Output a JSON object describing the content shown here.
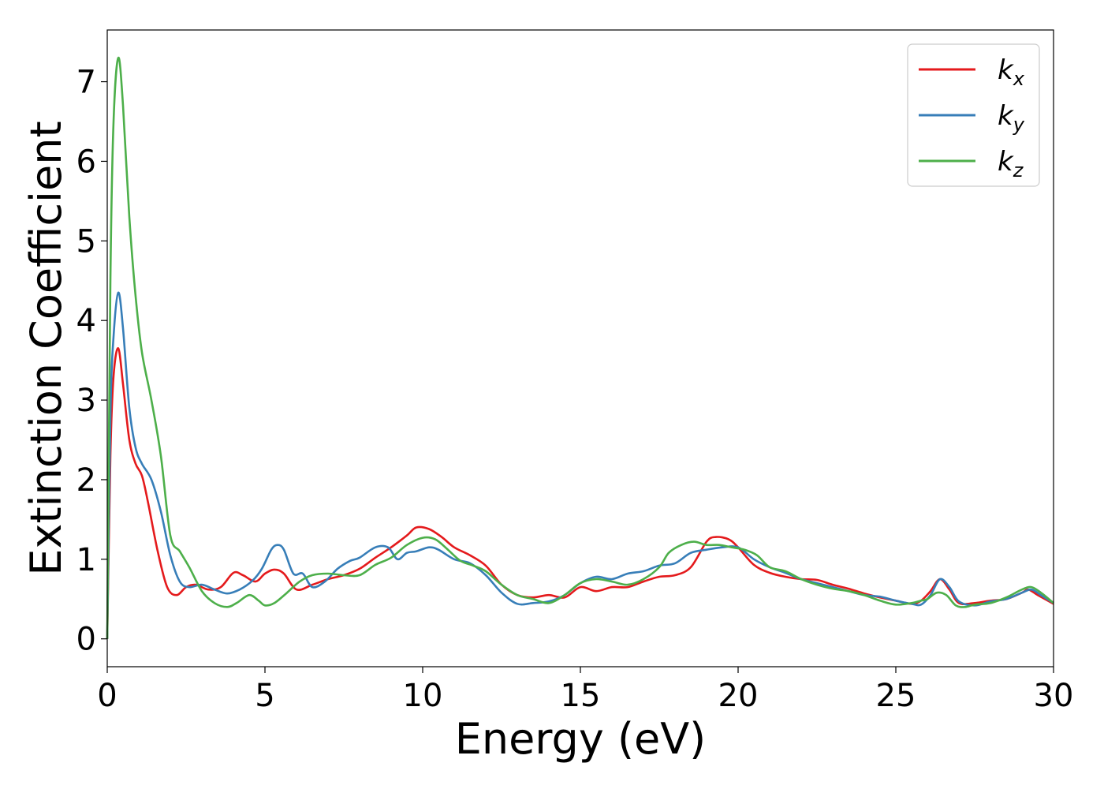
{
  "chart_data": {
    "type": "line",
    "title": "",
    "xlabel": "Energy (eV)",
    "ylabel": "Extinction Coefficient",
    "xlim": [
      0,
      30
    ],
    "ylim": [
      -0.35,
      7.65
    ],
    "xticks": [
      0,
      5,
      10,
      15,
      20,
      25,
      30
    ],
    "yticks": [
      0,
      1,
      2,
      3,
      4,
      5,
      6,
      7
    ],
    "grid": false,
    "legend_position": "top-right",
    "series": [
      {
        "name": "k",
        "subscript": "x",
        "color": "#e41a1c",
        "x": [
          0,
          0.1,
          0.2,
          0.35,
          0.5,
          0.7,
          0.9,
          1.1,
          1.3,
          1.6,
          1.9,
          2.2,
          2.5,
          2.8,
          3.2,
          3.6,
          4.0,
          4.3,
          4.7,
          5.0,
          5.3,
          5.6,
          6.0,
          6.5,
          7.0,
          7.5,
          8.0,
          8.5,
          9.0,
          9.5,
          9.8,
          10.2,
          10.6,
          11.0,
          11.5,
          12.0,
          12.5,
          13.0,
          13.5,
          14.0,
          14.5,
          15.0,
          15.5,
          16.0,
          16.5,
          17.0,
          17.5,
          18.0,
          18.5,
          19.0,
          19.3,
          19.7,
          20.0,
          20.5,
          21.0,
          21.5,
          22.0,
          22.5,
          23.0,
          23.5,
          24.0,
          24.5,
          25.0,
          25.5,
          25.8,
          26.1,
          26.4,
          26.7,
          27.0,
          27.5,
          28.0,
          28.5,
          29.0,
          29.2,
          29.5,
          30.0
        ],
        "y": [
          0,
          2.3,
          3.3,
          3.65,
          3.2,
          2.5,
          2.2,
          2.05,
          1.7,
          1.1,
          0.65,
          0.55,
          0.65,
          0.68,
          0.62,
          0.65,
          0.83,
          0.8,
          0.72,
          0.82,
          0.87,
          0.82,
          0.62,
          0.68,
          0.75,
          0.8,
          0.88,
          1.02,
          1.15,
          1.3,
          1.4,
          1.38,
          1.28,
          1.15,
          1.05,
          0.92,
          0.68,
          0.55,
          0.52,
          0.55,
          0.52,
          0.65,
          0.6,
          0.65,
          0.65,
          0.72,
          0.78,
          0.8,
          0.9,
          1.22,
          1.28,
          1.25,
          1.15,
          0.93,
          0.83,
          0.78,
          0.75,
          0.74,
          0.68,
          0.63,
          0.57,
          0.52,
          0.48,
          0.44,
          0.48,
          0.6,
          0.75,
          0.62,
          0.45,
          0.45,
          0.48,
          0.5,
          0.58,
          0.62,
          0.55,
          0.44
        ]
      },
      {
        "name": "k",
        "subscript": "y",
        "color": "#377eb8",
        "x": [
          0,
          0.1,
          0.2,
          0.35,
          0.5,
          0.7,
          0.9,
          1.1,
          1.4,
          1.7,
          2.0,
          2.3,
          2.6,
          3.0,
          3.4,
          3.8,
          4.2,
          4.6,
          4.9,
          5.2,
          5.4,
          5.6,
          5.9,
          6.2,
          6.5,
          6.9,
          7.3,
          7.7,
          8.0,
          8.5,
          8.9,
          9.2,
          9.5,
          9.8,
          10.2,
          10.5,
          11.0,
          11.5,
          12.0,
          12.5,
          13.0,
          13.5,
          14.0,
          14.5,
          15.0,
          15.5,
          16.0,
          16.5,
          17.0,
          17.5,
          18.0,
          18.5,
          19.0,
          19.5,
          20.0,
          20.5,
          21.0,
          21.5,
          22.0,
          22.5,
          23.0,
          23.5,
          24.0,
          24.5,
          25.0,
          25.5,
          25.8,
          26.1,
          26.4,
          26.7,
          27.0,
          27.5,
          28.0,
          28.5,
          29.0,
          29.3,
          29.6,
          30.0
        ],
        "y": [
          0,
          2.8,
          3.8,
          4.35,
          3.9,
          2.9,
          2.4,
          2.2,
          2.0,
          1.6,
          1.05,
          0.72,
          0.65,
          0.68,
          0.62,
          0.57,
          0.62,
          0.73,
          0.88,
          1.12,
          1.18,
          1.12,
          0.82,
          0.82,
          0.65,
          0.72,
          0.88,
          0.98,
          1.02,
          1.15,
          1.15,
          1.0,
          1.08,
          1.1,
          1.15,
          1.12,
          1.0,
          0.95,
          0.8,
          0.58,
          0.44,
          0.45,
          0.47,
          0.55,
          0.7,
          0.78,
          0.75,
          0.82,
          0.85,
          0.92,
          0.95,
          1.08,
          1.12,
          1.15,
          1.15,
          1.0,
          0.9,
          0.83,
          0.75,
          0.7,
          0.65,
          0.6,
          0.55,
          0.53,
          0.48,
          0.44,
          0.43,
          0.55,
          0.75,
          0.65,
          0.47,
          0.42,
          0.47,
          0.5,
          0.58,
          0.62,
          0.55,
          0.45
        ]
      },
      {
        "name": "k",
        "subscript": "z",
        "color": "#4daf4a",
        "x": [
          0,
          0.1,
          0.2,
          0.35,
          0.5,
          0.7,
          0.9,
          1.1,
          1.4,
          1.7,
          2.0,
          2.3,
          2.6,
          3.0,
          3.4,
          3.8,
          4.1,
          4.5,
          4.8,
          5.0,
          5.3,
          5.7,
          6.1,
          6.5,
          7.0,
          7.5,
          8.0,
          8.5,
          9.0,
          9.5,
          10.0,
          10.4,
          10.8,
          11.2,
          11.6,
          12.0,
          12.5,
          13.0,
          13.5,
          14.0,
          14.5,
          15.0,
          15.5,
          16.0,
          16.5,
          17.0,
          17.5,
          17.8,
          18.2,
          18.6,
          19.0,
          19.4,
          19.8,
          20.2,
          20.6,
          21.0,
          21.5,
          22.0,
          22.5,
          23.0,
          23.5,
          24.0,
          24.5,
          25.0,
          25.5,
          25.8,
          26.0,
          26.3,
          26.6,
          26.9,
          27.2,
          27.5,
          28.0,
          28.5,
          29.0,
          29.3,
          29.6,
          30.0
        ],
        "y": [
          0,
          4.5,
          6.5,
          7.3,
          6.7,
          5.3,
          4.3,
          3.6,
          3.0,
          2.3,
          1.3,
          1.1,
          0.9,
          0.6,
          0.45,
          0.4,
          0.45,
          0.55,
          0.48,
          0.42,
          0.45,
          0.58,
          0.72,
          0.8,
          0.82,
          0.8,
          0.8,
          0.93,
          1.02,
          1.18,
          1.27,
          1.25,
          1.12,
          0.98,
          0.92,
          0.85,
          0.68,
          0.55,
          0.5,
          0.45,
          0.55,
          0.7,
          0.75,
          0.72,
          0.68,
          0.75,
          0.9,
          1.08,
          1.18,
          1.22,
          1.18,
          1.18,
          1.15,
          1.12,
          1.05,
          0.9,
          0.85,
          0.75,
          0.68,
          0.63,
          0.6,
          0.55,
          0.48,
          0.43,
          0.45,
          0.48,
          0.5,
          0.58,
          0.55,
          0.42,
          0.4,
          0.43,
          0.45,
          0.52,
          0.62,
          0.65,
          0.58,
          0.45
        ]
      }
    ]
  }
}
